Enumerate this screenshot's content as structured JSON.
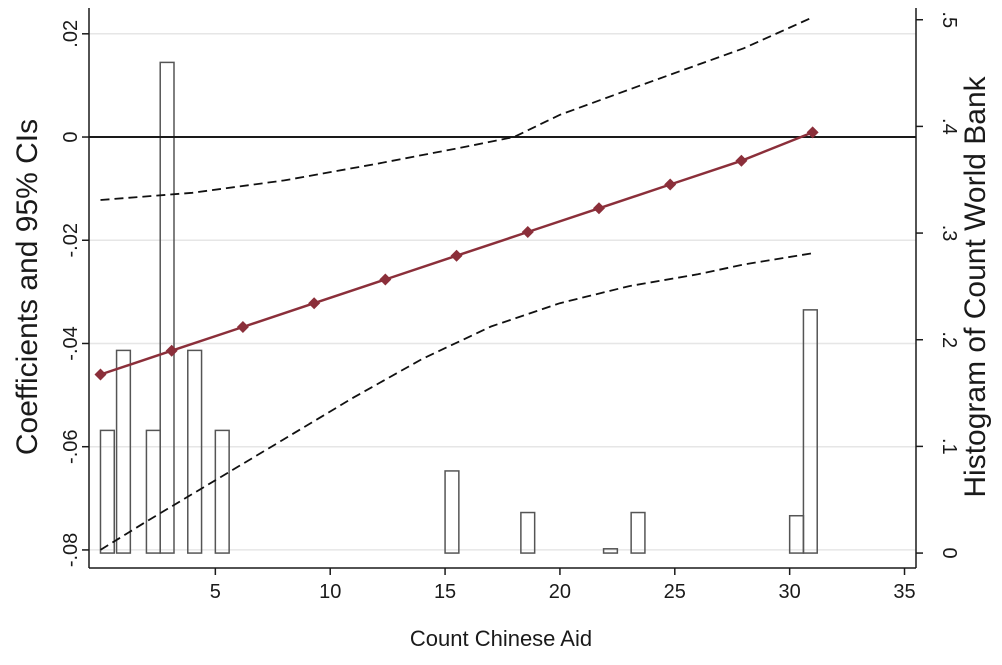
{
  "chart_data": {
    "type": "line",
    "xlabel": "Count Chinese Aid",
    "ylabel": "Coefficients and 95% CIs",
    "y2label": "Histogram of Count World Bank",
    "xlim": [
      -0.5,
      35.5
    ],
    "ylim": [
      -0.0835,
      0.025
    ],
    "y2lim": [
      -0.014,
      0.511
    ],
    "x_ticks": [
      5,
      10,
      15,
      20,
      25,
      30,
      35
    ],
    "y_ticks": [
      {
        "value": 0.02,
        "label": ".02"
      },
      {
        "value": 0,
        "label": "0"
      },
      {
        "value": -0.02,
        "label": "-.02"
      },
      {
        "value": -0.04,
        "label": "-.04"
      },
      {
        "value": -0.06,
        "label": "-.06"
      },
      {
        "value": -0.08,
        "label": "-.08"
      }
    ],
    "y2_ticks": [
      {
        "value": 0,
        "label": "0"
      },
      {
        "value": 0.1,
        "label": ".1"
      },
      {
        "value": 0.2,
        "label": ".2"
      },
      {
        "value": 0.3,
        "label": ".3"
      },
      {
        "value": 0.4,
        "label": ".4"
      },
      {
        "value": 0.5,
        "label": ".5"
      }
    ],
    "reference_line_y": 0,
    "grid": true,
    "legend": "none",
    "series": [
      {
        "role": "coefficient",
        "color": "#8b2f3a",
        "x": [
          0,
          3.1,
          6.2,
          9.3,
          12.4,
          15.5,
          18.6,
          21.7,
          24.8,
          27.9,
          31
        ],
        "y": [
          -0.046,
          -0.0414,
          -0.0368,
          -0.0322,
          -0.0276,
          -0.023,
          -0.0184,
          -0.0138,
          -0.0092,
          -0.0046,
          0.0009
        ]
      },
      {
        "role": "upper-ci",
        "color": "#111111",
        "x": [
          0,
          4,
          8,
          12,
          16,
          18,
          20,
          24,
          28,
          31
        ],
        "y": [
          -0.0122,
          -0.0108,
          -0.0084,
          -0.0052,
          -0.0018,
          0.0,
          0.0043,
          0.0108,
          0.0172,
          0.0232
        ]
      },
      {
        "role": "lower-ci",
        "color": "#111111",
        "x": [
          0,
          2,
          5,
          8,
          11,
          14,
          17,
          20,
          23,
          26,
          28,
          31
        ],
        "y": [
          -0.08,
          -0.0745,
          -0.0665,
          -0.0585,
          -0.0505,
          -0.043,
          -0.0367,
          -0.0322,
          -0.0289,
          -0.0266,
          -0.0247,
          -0.0225
        ]
      }
    ],
    "histogram": {
      "bar_width": 0.6,
      "bars": [
        {
          "x": 0.3,
          "value": 0.115
        },
        {
          "x": 1.0,
          "value": 0.19
        },
        {
          "x": 2.3,
          "value": 0.115
        },
        {
          "x": 2.9,
          "value": 0.46
        },
        {
          "x": 4.1,
          "value": 0.19
        },
        {
          "x": 5.3,
          "value": 0.115
        },
        {
          "x": 15.3,
          "value": 0.077
        },
        {
          "x": 18.6,
          "value": 0.038
        },
        {
          "x": 22.2,
          "value": 0.004
        },
        {
          "x": 23.4,
          "value": 0.038
        },
        {
          "x": 30.3,
          "value": 0.035
        },
        {
          "x": 30.9,
          "value": 0.228
        }
      ]
    }
  }
}
